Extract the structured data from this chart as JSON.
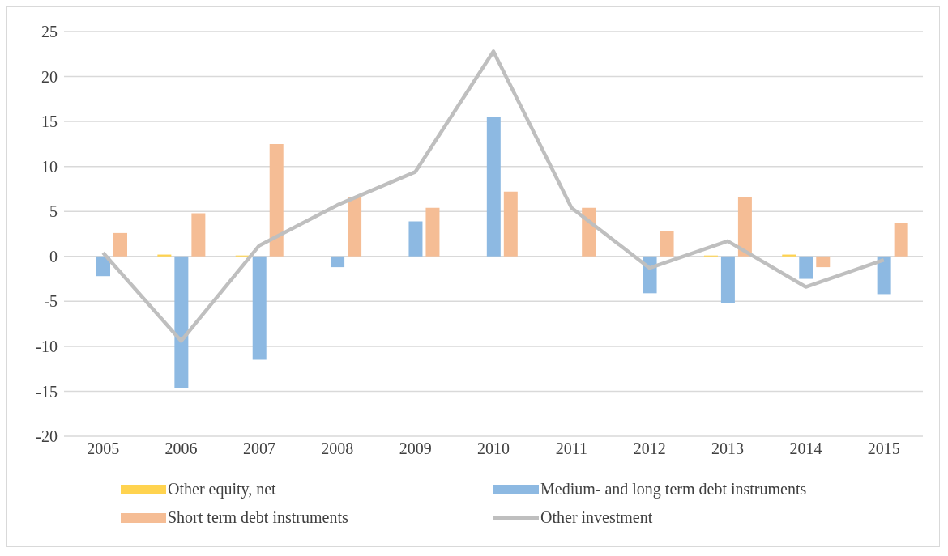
{
  "chart_data": {
    "type": "bar",
    "categories": [
      "2005",
      "2006",
      "2007",
      "2008",
      "2009",
      "2010",
      "2011",
      "2012",
      "2013",
      "2014",
      "2015"
    ],
    "series": [
      {
        "name": "Other equity, net",
        "color": "#ffd34f",
        "values": [
          0,
          0.2,
          0.1,
          0,
          0,
          0,
          0,
          0,
          0.1,
          0.2,
          0
        ]
      },
      {
        "name": "Medium- and long term debt instruments",
        "color": "#8db9e2",
        "values": [
          -2.2,
          -14.6,
          -11.5,
          -1.2,
          3.9,
          15.5,
          0,
          -4.1,
          -5.2,
          -2.5,
          -4.2
        ]
      },
      {
        "name": "Short term debt instruments",
        "color": "#f5bd95",
        "values": [
          2.6,
          4.8,
          12.5,
          6.6,
          5.4,
          7.2,
          5.4,
          2.8,
          6.6,
          -1.2,
          3.7
        ]
      },
      {
        "name": "Other investment",
        "type": "line",
        "color": "#bfbfbf",
        "marker": "none",
        "values": [
          0.4,
          -9.4,
          1.2,
          5.7,
          9.4,
          22.8,
          5.4,
          -1.3,
          1.7,
          -3.4,
          -0.4
        ]
      }
    ],
    "ylim": [
      -20,
      25
    ],
    "yticks": [
      -20,
      -15,
      -10,
      -5,
      0,
      5,
      10,
      15,
      20,
      25
    ],
    "grid": "y",
    "legend": "bottom"
  }
}
